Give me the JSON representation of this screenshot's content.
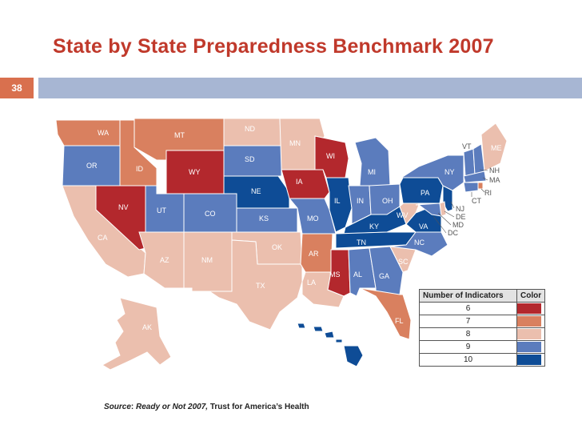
{
  "title": "State by State Preparedness Benchmark 2007",
  "slide_number": "38",
  "source": {
    "label": "Source",
    "title": "Ready or Not 2007,",
    "org": "Trust for America’s Health"
  },
  "legend": {
    "header_indicators": "Number of Indicators",
    "header_color": "Color",
    "rows": [
      {
        "indicators": "6",
        "color": "#b3282d"
      },
      {
        "indicators": "7",
        "color": "#d9805f"
      },
      {
        "indicators": "8",
        "color": "#ebbfae"
      },
      {
        "indicators": "9",
        "color": "#5b7cbd"
      },
      {
        "indicators": "10",
        "color": "#0e4c96"
      }
    ]
  },
  "states": [
    {
      "abbr": "WA",
      "indicators": 7
    },
    {
      "abbr": "OR",
      "indicators": 9
    },
    {
      "abbr": "CA",
      "indicators": 8
    },
    {
      "abbr": "NV",
      "indicators": 6
    },
    {
      "abbr": "ID",
      "indicators": 7
    },
    {
      "abbr": "MT",
      "indicators": 7
    },
    {
      "abbr": "WY",
      "indicators": 6
    },
    {
      "abbr": "UT",
      "indicators": 9
    },
    {
      "abbr": "AZ",
      "indicators": 8
    },
    {
      "abbr": "CO",
      "indicators": 9
    },
    {
      "abbr": "NM",
      "indicators": 8
    },
    {
      "abbr": "ND",
      "indicators": 8
    },
    {
      "abbr": "SD",
      "indicators": 9
    },
    {
      "abbr": "NE",
      "indicators": 10
    },
    {
      "abbr": "KS",
      "indicators": 9
    },
    {
      "abbr": "OK",
      "indicators": 8
    },
    {
      "abbr": "TX",
      "indicators": 8
    },
    {
      "abbr": "MN",
      "indicators": 8
    },
    {
      "abbr": "IA",
      "indicators": 6
    },
    {
      "abbr": "MO",
      "indicators": 9
    },
    {
      "abbr": "AR",
      "indicators": 7
    },
    {
      "abbr": "LA",
      "indicators": 8
    },
    {
      "abbr": "WI",
      "indicators": 6
    },
    {
      "abbr": "IL",
      "indicators": 10
    },
    {
      "abbr": "MS",
      "indicators": 6
    },
    {
      "abbr": "MI",
      "indicators": 9
    },
    {
      "abbr": "IN",
      "indicators": 9
    },
    {
      "abbr": "OH",
      "indicators": 9
    },
    {
      "abbr": "KY",
      "indicators": 10
    },
    {
      "abbr": "TN",
      "indicators": 10
    },
    {
      "abbr": "AL",
      "indicators": 9
    },
    {
      "abbr": "GA",
      "indicators": 9
    },
    {
      "abbr": "FL",
      "indicators": 7
    },
    {
      "abbr": "SC",
      "indicators": 8
    },
    {
      "abbr": "NC",
      "indicators": 9
    },
    {
      "abbr": "VA",
      "indicators": 10
    },
    {
      "abbr": "WV",
      "indicators": 8
    },
    {
      "abbr": "PA",
      "indicators": 10
    },
    {
      "abbr": "NY",
      "indicators": 9
    },
    {
      "abbr": "VT",
      "indicators": 9
    },
    {
      "abbr": "NH",
      "indicators": 9
    },
    {
      "abbr": "ME",
      "indicators": 8
    },
    {
      "abbr": "MA",
      "indicators": 9
    },
    {
      "abbr": "RI",
      "indicators": 7
    },
    {
      "abbr": "CT",
      "indicators": 9
    },
    {
      "abbr": "NJ",
      "indicators": 10
    },
    {
      "abbr": "DE",
      "indicators": 8
    },
    {
      "abbr": "MD",
      "indicators": 9
    },
    {
      "abbr": "DC",
      "indicators": 8
    },
    {
      "abbr": "AK",
      "indicators": 8
    },
    {
      "abbr": "HI",
      "indicators": 10
    }
  ]
}
